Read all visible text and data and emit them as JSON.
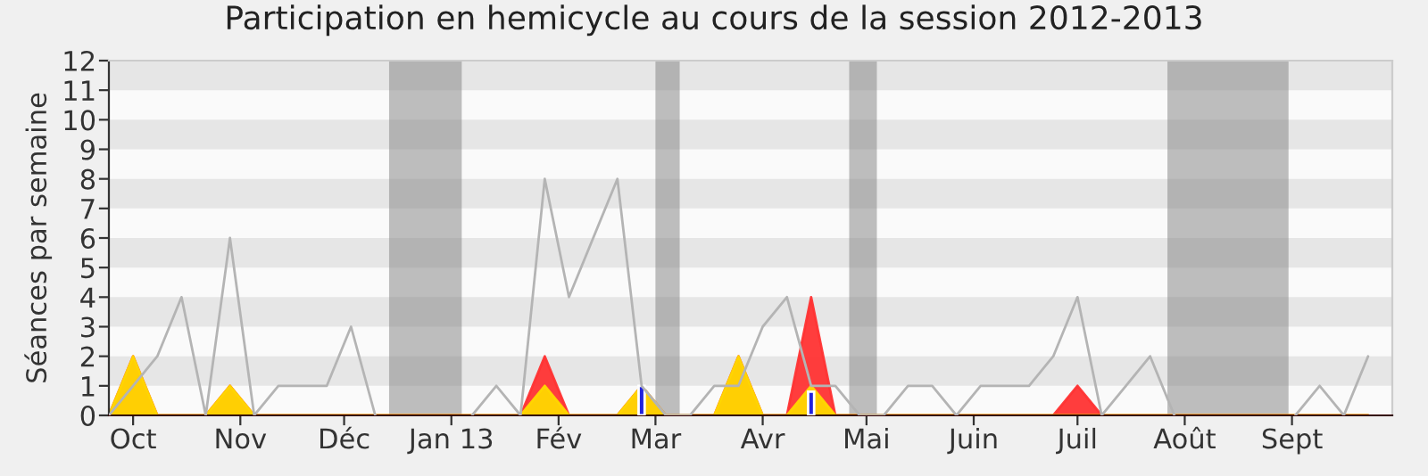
{
  "chart_data": {
    "type": "line",
    "title": "Participation en hemicycle au cours de la session 2012-2013",
    "ylabel": "Séances par semaine",
    "x": [
      "2012-09-24",
      "2012-10-01",
      "2012-10-08",
      "2012-10-15",
      "2012-10-22",
      "2012-10-29",
      "2012-11-05",
      "2012-11-12",
      "2012-11-19",
      "2012-11-26",
      "2012-12-03",
      "2012-12-10",
      "2012-12-17",
      "2012-12-24",
      "2012-12-31",
      "2013-01-07",
      "2013-01-14",
      "2013-01-21",
      "2013-01-28",
      "2013-02-04",
      "2013-02-11",
      "2013-02-18",
      "2013-02-25",
      "2013-03-04",
      "2013-03-11",
      "2013-03-18",
      "2013-03-25",
      "2013-04-01",
      "2013-04-08",
      "2013-04-15",
      "2013-04-22",
      "2013-04-29",
      "2013-05-06",
      "2013-05-13",
      "2013-05-20",
      "2013-05-27",
      "2013-06-03",
      "2013-06-10",
      "2013-06-17",
      "2013-06-24",
      "2013-07-01",
      "2013-07-08",
      "2013-07-15",
      "2013-07-22",
      "2013-07-29",
      "2013-08-05",
      "2013-08-12",
      "2013-08-19",
      "2013-08-26",
      "2013-09-02",
      "2013-09-09",
      "2013-09-16",
      "2013-09-23"
    ],
    "xlim": [
      "2012-09-24",
      "2013-09-30"
    ],
    "ylim": [
      0,
      12
    ],
    "yticks": [
      0,
      1,
      2,
      3,
      4,
      5,
      6,
      7,
      8,
      9,
      10,
      11,
      12
    ],
    "xticks": [
      {
        "value": "2012-10-01",
        "label": "Oct"
      },
      {
        "value": "2012-11-01",
        "label": "Nov"
      },
      {
        "value": "2012-12-01",
        "label": "Déc"
      },
      {
        "value": "2013-01-01",
        "label": "Jan 13"
      },
      {
        "value": "2013-02-01",
        "label": "Fév"
      },
      {
        "value": "2013-03-01",
        "label": "Mar"
      },
      {
        "value": "2013-04-01",
        "label": "Avr"
      },
      {
        "value": "2013-05-01",
        "label": "Mai"
      },
      {
        "value": "2013-06-01",
        "label": "Juin"
      },
      {
        "value": "2013-07-01",
        "label": "Juil"
      },
      {
        "value": "2013-08-01",
        "label": "Août"
      },
      {
        "value": "2013-09-01",
        "label": "Sept"
      }
    ],
    "grid": false,
    "bands": [
      {
        "axis": "y",
        "from": 1,
        "to": 2,
        "color": "#e6e6e6"
      },
      {
        "axis": "y",
        "from": 3,
        "to": 4,
        "color": "#e6e6e6"
      },
      {
        "axis": "y",
        "from": 5,
        "to": 6,
        "color": "#e6e6e6"
      },
      {
        "axis": "y",
        "from": 7,
        "to": 8,
        "color": "#e6e6e6"
      },
      {
        "axis": "y",
        "from": 9,
        "to": 10,
        "color": "#e6e6e6"
      },
      {
        "axis": "y",
        "from": 11,
        "to": 12,
        "color": "#e6e6e6"
      },
      {
        "axis": "x",
        "from": "2012-12-14",
        "to": "2013-01-04",
        "color": "#808080"
      },
      {
        "axis": "x",
        "from": "2013-03-01",
        "to": "2013-03-08",
        "color": "#808080"
      },
      {
        "axis": "x",
        "from": "2013-04-26",
        "to": "2013-05-04",
        "color": "#808080"
      },
      {
        "axis": "x",
        "from": "2013-07-27",
        "to": "2013-08-31",
        "color": "#808080"
      }
    ],
    "series": [
      {
        "color": "#b4b4b4",
        "values": [
          0,
          1,
          2,
          4,
          0,
          6,
          0,
          1,
          1,
          1,
          3,
          0,
          null,
          null,
          null,
          0,
          1,
          0,
          8,
          4,
          6,
          8,
          1,
          0,
          0,
          1,
          1,
          3,
          4,
          1,
          1,
          0,
          0,
          1,
          1,
          0,
          1,
          1,
          1,
          2,
          4,
          0,
          1,
          2,
          0,
          null,
          null,
          null,
          null,
          0,
          1,
          0,
          2
        ]
      },
      {
        "type": "area",
        "color": "#ff3333",
        "values": [
          0,
          2,
          0,
          0,
          0,
          1,
          0,
          0,
          0,
          0,
          0,
          0,
          0,
          0,
          0,
          0,
          0,
          0,
          2,
          0,
          0,
          0,
          1,
          0,
          0,
          0,
          2,
          0,
          0,
          4,
          0,
          0,
          0,
          0,
          0,
          0,
          0,
          0,
          0,
          0,
          1,
          0,
          0,
          0,
          0,
          0,
          0,
          0,
          0,
          0,
          0,
          0,
          0
        ]
      },
      {
        "type": "area",
        "color": "#ffd700",
        "values": [
          0,
          2,
          0,
          0,
          0,
          1,
          0,
          0,
          0,
          0,
          0,
          0,
          0,
          0,
          0,
          0,
          0,
          0,
          1,
          0,
          0,
          0,
          1,
          0,
          0,
          0,
          2,
          0,
          0,
          1,
          0,
          0,
          0,
          0,
          0,
          0,
          0,
          0,
          0,
          0,
          0,
          0,
          0,
          0,
          0,
          0,
          0,
          0,
          0,
          0,
          0,
          0,
          0
        ]
      },
      {
        "type": "bar",
        "color": "#2222dd",
        "x": [
          "2013-02-25",
          "2013-04-15"
        ],
        "values": [
          1,
          0.8
        ]
      }
    ]
  }
}
